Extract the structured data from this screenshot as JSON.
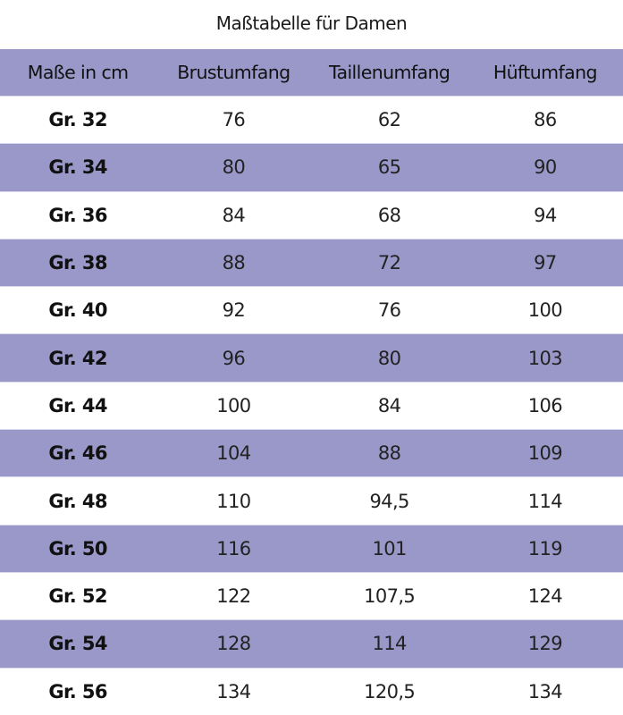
{
  "title": "Maßtabelle für Damen",
  "colors": {
    "band": "#9a98c9",
    "background": "#ffffff"
  },
  "table": {
    "headers": [
      "Maße in cm",
      "Brustumfang",
      "Taillenumfang",
      "Hüftumfang"
    ],
    "rows": [
      [
        "Gr. 32",
        "76",
        "62",
        "86"
      ],
      [
        "Gr. 34",
        "80",
        "65",
        "90"
      ],
      [
        "Gr. 36",
        "84",
        "68",
        "94"
      ],
      [
        "Gr. 38",
        "88",
        "72",
        "97"
      ],
      [
        "Gr. 40",
        "92",
        "76",
        "100"
      ],
      [
        "Gr. 42",
        "96",
        "80",
        "103"
      ],
      [
        "Gr. 44",
        "100",
        "84",
        "106"
      ],
      [
        "Gr. 46",
        "104",
        "88",
        "109"
      ],
      [
        "Gr. 48",
        "110",
        "94,5",
        "114"
      ],
      [
        "Gr. 50",
        "116",
        "101",
        "119"
      ],
      [
        "Gr. 52",
        "122",
        "107,5",
        "124"
      ],
      [
        "Gr. 54",
        "128",
        "114",
        "129"
      ],
      [
        "Gr. 56",
        "134",
        "120,5",
        "134"
      ]
    ]
  }
}
